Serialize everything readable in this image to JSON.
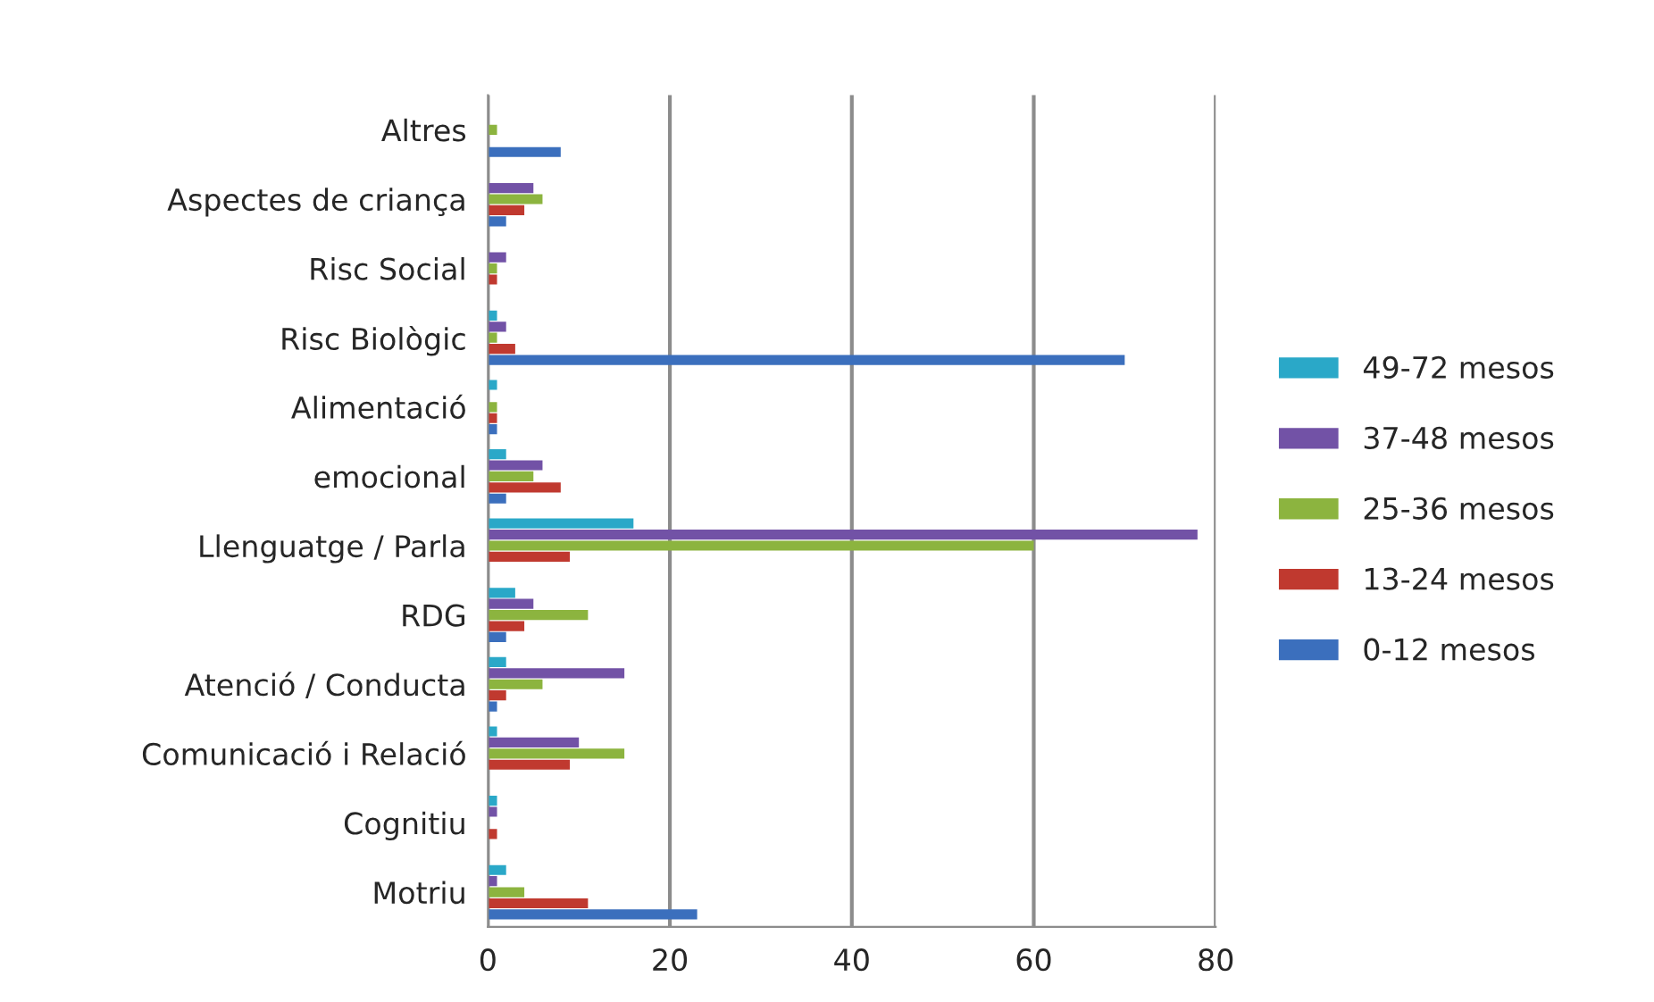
{
  "chart_data": {
    "type": "bar",
    "orientation": "horizontal",
    "categories": [
      "Altres",
      "Aspectes de criança",
      "Risc Social",
      "Risc Biològic",
      "Alimentació",
      "emocional",
      "Llenguatge / Parla",
      "RDG",
      "Atenció / Conducta",
      "Comunicació i Relació",
      "Cognitiu",
      "Motriu"
    ],
    "series": [
      {
        "name": "0-12 mesos",
        "color": "#3b6fbd",
        "values": [
          8,
          2,
          0,
          70,
          1,
          2,
          0,
          2,
          1,
          0,
          0,
          23
        ]
      },
      {
        "name": "13-24 mesos",
        "color": "#c0392f",
        "values": [
          0,
          4,
          1,
          3,
          1,
          8,
          9,
          4,
          2,
          9,
          1,
          11
        ]
      },
      {
        "name": "25-36 mesos",
        "color": "#8cb43f",
        "values": [
          1,
          6,
          1,
          1,
          1,
          5,
          60,
          11,
          6,
          15,
          0,
          4
        ]
      },
      {
        "name": "37-48 mesos",
        "color": "#7252a6",
        "values": [
          0,
          5,
          2,
          2,
          0,
          6,
          78,
          5,
          15,
          10,
          1,
          1
        ]
      },
      {
        "name": "49-72 mesos",
        "color": "#2aa8c8",
        "values": [
          0,
          0,
          0,
          1,
          1,
          2,
          16,
          3,
          2,
          1,
          1,
          2
        ]
      }
    ],
    "xlim": [
      0,
      80
    ],
    "xticks": [
      0,
      20,
      40,
      60,
      80
    ],
    "grid": "x",
    "legend": "right"
  }
}
